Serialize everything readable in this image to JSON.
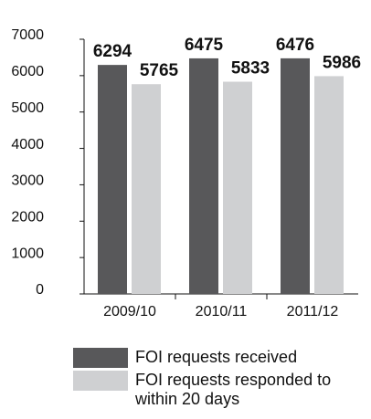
{
  "chart_data": {
    "type": "bar",
    "categories": [
      "2009/10",
      "2010/11",
      "2011/12"
    ],
    "series": [
      {
        "name": "FOI requests received",
        "color": "#58585a",
        "values": [
          6294,
          6475,
          6476
        ]
      },
      {
        "name": "FOI requests responded to within 20 days",
        "color": "#cfd0d2",
        "values": [
          5765,
          5833,
          5986
        ]
      }
    ],
    "ylim": [
      0,
      7000
    ],
    "yticks": [
      0,
      1000,
      2000,
      3000,
      4000,
      5000,
      6000,
      7000
    ]
  }
}
